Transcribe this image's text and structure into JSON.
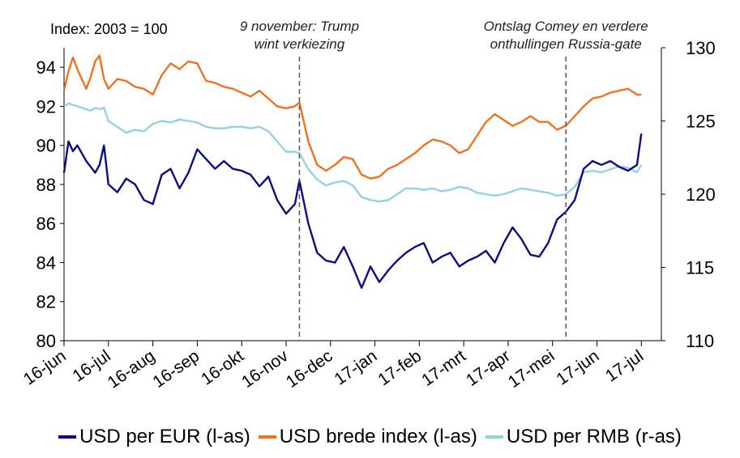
{
  "chart_data": {
    "type": "line",
    "index_label": "Index: 2003 = 100",
    "x_ticks": [
      "16-jun",
      "16-jul",
      "16-aug",
      "16-sep",
      "16-okt",
      "16-nov",
      "16-dec",
      "17-jan",
      "17-feb",
      "17-mrt",
      "17-apr",
      "17-mei",
      "17-jun",
      "17-jul"
    ],
    "y_left": {
      "ylim": [
        80,
        95
      ],
      "ticks": [
        80,
        82,
        84,
        86,
        88,
        90,
        92,
        94
      ]
    },
    "y_right": {
      "ylim": [
        110,
        130
      ],
      "ticks": [
        110,
        115,
        120,
        125,
        130
      ]
    },
    "annotations": [
      {
        "x": 5.3,
        "lines": [
          "9 november: Trump",
          "wint verkiezing"
        ]
      },
      {
        "x": 11.3,
        "lines": [
          "Ontslag Comey en verdere",
          "onthullingen Russia-gate"
        ]
      }
    ],
    "series": [
      {
        "name": "USD per EUR (l-as)",
        "axis": "left",
        "color": "#0c0c84",
        "x": [
          0,
          0.1,
          0.2,
          0.3,
          0.4,
          0.5,
          0.6,
          0.7,
          0.8,
          0.9,
          1.0,
          1.2,
          1.4,
          1.6,
          1.8,
          2.0,
          2.2,
          2.4,
          2.6,
          2.8,
          3.0,
          3.2,
          3.4,
          3.6,
          3.8,
          4.0,
          4.2,
          4.4,
          4.6,
          4.8,
          5.0,
          5.2,
          5.3,
          5.5,
          5.7,
          5.9,
          6.1,
          6.3,
          6.5,
          6.7,
          6.9,
          7.1,
          7.3,
          7.5,
          7.7,
          7.9,
          8.1,
          8.3,
          8.5,
          8.7,
          8.9,
          9.1,
          9.3,
          9.5,
          9.7,
          9.9,
          10.1,
          10.3,
          10.5,
          10.7,
          10.9,
          11.1,
          11.3,
          11.5,
          11.7,
          11.9,
          12.1,
          12.3,
          12.5,
          12.7,
          12.9,
          13.0
        ],
        "values": [
          88.6,
          90.2,
          89.7,
          90.0,
          89.6,
          89.2,
          88.9,
          88.6,
          89.0,
          90.0,
          88.0,
          87.6,
          88.3,
          88.0,
          87.2,
          87.0,
          88.5,
          88.8,
          87.8,
          88.6,
          89.8,
          89.3,
          88.8,
          89.2,
          88.8,
          88.7,
          88.5,
          87.9,
          88.4,
          87.2,
          86.5,
          87.0,
          88.2,
          86.0,
          84.5,
          84.1,
          84.0,
          84.8,
          83.8,
          82.7,
          83.8,
          83.0,
          83.6,
          84.1,
          84.5,
          84.8,
          85.0,
          84.0,
          84.3,
          84.5,
          83.8,
          84.1,
          84.3,
          84.6,
          84.0,
          85.0,
          85.8,
          85.2,
          84.4,
          84.3,
          85.0,
          86.2,
          86.6,
          87.2,
          88.8,
          89.2,
          89.0,
          89.2,
          88.9,
          88.7,
          89.0,
          90.6
        ]
      },
      {
        "name": "USD brede index (l-as)",
        "axis": "left",
        "color": "#ee7220",
        "x": [
          0,
          0.1,
          0.2,
          0.3,
          0.4,
          0.5,
          0.6,
          0.7,
          0.8,
          0.9,
          1.0,
          1.2,
          1.4,
          1.6,
          1.8,
          2.0,
          2.2,
          2.4,
          2.6,
          2.8,
          3.0,
          3.2,
          3.4,
          3.6,
          3.8,
          4.0,
          4.2,
          4.4,
          4.6,
          4.8,
          5.0,
          5.2,
          5.3,
          5.5,
          5.7,
          5.9,
          6.1,
          6.3,
          6.5,
          6.7,
          6.9,
          7.1,
          7.3,
          7.5,
          7.7,
          7.9,
          8.1,
          8.3,
          8.5,
          8.7,
          8.9,
          9.1,
          9.3,
          9.5,
          9.7,
          9.9,
          10.1,
          10.3,
          10.5,
          10.7,
          10.9,
          11.1,
          11.3,
          11.5,
          11.7,
          11.9,
          12.1,
          12.3,
          12.5,
          12.7,
          12.9,
          13.0
        ],
        "values": [
          92.8,
          93.8,
          94.5,
          93.9,
          93.4,
          92.9,
          93.5,
          94.3,
          94.6,
          93.4,
          92.9,
          93.4,
          93.3,
          93.0,
          92.9,
          92.6,
          93.6,
          94.2,
          93.9,
          94.3,
          94.2,
          93.3,
          93.2,
          93.0,
          92.9,
          92.7,
          92.5,
          92.8,
          92.4,
          92.0,
          91.9,
          92.0,
          92.2,
          90.2,
          89.0,
          88.7,
          89.0,
          89.4,
          89.3,
          88.5,
          88.3,
          88.4,
          88.8,
          89.0,
          89.3,
          89.6,
          90.0,
          90.3,
          90.2,
          90.0,
          89.6,
          89.8,
          90.5,
          91.2,
          91.6,
          91.3,
          91.0,
          91.2,
          91.5,
          91.2,
          91.2,
          90.8,
          91.0,
          91.5,
          92.0,
          92.4,
          92.5,
          92.7,
          92.8,
          92.9,
          92.6,
          92.6
        ]
      },
      {
        "name": "USD per RMB (r-as)",
        "axis": "right",
        "color": "#92d3df",
        "x": [
          0,
          0.1,
          0.2,
          0.3,
          0.4,
          0.5,
          0.6,
          0.7,
          0.8,
          0.9,
          1.0,
          1.2,
          1.4,
          1.6,
          1.8,
          2.0,
          2.2,
          2.4,
          2.6,
          2.8,
          3.0,
          3.2,
          3.4,
          3.6,
          3.8,
          4.0,
          4.2,
          4.4,
          4.6,
          4.8,
          5.0,
          5.2,
          5.3,
          5.5,
          5.7,
          5.9,
          6.1,
          6.3,
          6.5,
          6.7,
          6.9,
          7.1,
          7.3,
          7.5,
          7.7,
          7.9,
          8.1,
          8.3,
          8.5,
          8.7,
          8.9,
          9.1,
          9.3,
          9.5,
          9.7,
          9.9,
          10.1,
          10.3,
          10.5,
          10.7,
          10.9,
          11.1,
          11.3,
          11.5,
          11.7,
          11.9,
          12.1,
          12.3,
          12.5,
          12.7,
          12.9,
          13.0
        ],
        "values": [
          126.0,
          126.2,
          126.1,
          126.0,
          125.9,
          125.8,
          125.7,
          125.9,
          125.8,
          125.9,
          125.0,
          124.6,
          124.2,
          124.4,
          124.3,
          124.8,
          125.0,
          124.9,
          125.1,
          125.0,
          124.9,
          124.6,
          124.5,
          124.5,
          124.6,
          124.6,
          124.5,
          124.6,
          124.3,
          123.6,
          122.9,
          122.9,
          122.8,
          121.7,
          121.0,
          120.6,
          120.8,
          120.9,
          120.6,
          119.8,
          119.6,
          119.5,
          119.6,
          120.0,
          120.4,
          120.4,
          120.3,
          120.4,
          120.2,
          120.3,
          120.5,
          120.4,
          120.1,
          120.0,
          119.9,
          120.0,
          120.2,
          120.4,
          120.3,
          120.2,
          120.1,
          119.9,
          120.0,
          120.5,
          121.5,
          121.6,
          121.5,
          121.7,
          121.9,
          121.8,
          121.5,
          122.0
        ]
      }
    ]
  }
}
